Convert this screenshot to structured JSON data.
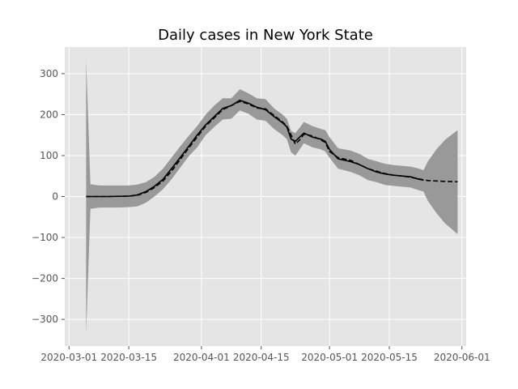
{
  "chart_data": {
    "type": "line",
    "title": "Daily cases in New York State",
    "xlabel": "",
    "ylabel": "",
    "x_is_date": true,
    "xlim": [
      "2020-02-29",
      "2020-06-02"
    ],
    "ylim": [
      -365,
      365
    ],
    "grid": true,
    "legend": "none",
    "x_ticks": [
      {
        "value": "2020-03-01",
        "label": "2020-03-01"
      },
      {
        "value": "2020-03-15",
        "label": "2020-03-15"
      },
      {
        "value": "2020-04-01",
        "label": "2020-04-01"
      },
      {
        "value": "2020-04-15",
        "label": "2020-04-15"
      },
      {
        "value": "2020-05-01",
        "label": "2020-05-01"
      },
      {
        "value": "2020-05-15",
        "label": "2020-05-15"
      },
      {
        "value": "2020-06-01",
        "label": "2020-06-01"
      }
    ],
    "y_ticks": [
      {
        "value": 300,
        "label": "300"
      },
      {
        "value": 200,
        "label": "200"
      },
      {
        "value": 100,
        "label": "100"
      },
      {
        "value": 0,
        "label": "0"
      },
      {
        "value": -100,
        "label": "−100"
      },
      {
        "value": -200,
        "label": "−200"
      },
      {
        "value": -300,
        "label": "−300"
      }
    ],
    "colors": {
      "axes_bg": "#E5E5E5",
      "grid": "#FFFFFF",
      "band": "#999999",
      "line": "#000000",
      "ticks": "#555555"
    },
    "band": [
      {
        "x": "2020-03-05",
        "lower": -335,
        "upper": 335
      },
      {
        "x": "2020-03-06",
        "lower": -30,
        "upper": 30
      },
      {
        "x": "2020-03-08",
        "lower": -27,
        "upper": 27
      },
      {
        "x": "2020-03-12",
        "lower": -27,
        "upper": 27
      },
      {
        "x": "2020-03-15",
        "lower": -26,
        "upper": 27
      },
      {
        "x": "2020-03-17",
        "lower": -24,
        "upper": 29
      },
      {
        "x": "2020-03-19",
        "lower": -15,
        "upper": 35
      },
      {
        "x": "2020-03-21",
        "lower": 0,
        "upper": 48
      },
      {
        "x": "2020-03-23",
        "lower": 18,
        "upper": 68
      },
      {
        "x": "2020-03-25",
        "lower": 42,
        "upper": 95
      },
      {
        "x": "2020-03-27",
        "lower": 70,
        "upper": 122
      },
      {
        "x": "2020-03-29",
        "lower": 98,
        "upper": 148
      },
      {
        "x": "2020-03-31",
        "lower": 120,
        "upper": 172
      },
      {
        "x": "2020-04-02",
        "lower": 150,
        "upper": 200
      },
      {
        "x": "2020-04-04",
        "lower": 170,
        "upper": 222
      },
      {
        "x": "2020-04-06",
        "lower": 188,
        "upper": 240
      },
      {
        "x": "2020-04-08",
        "lower": 190,
        "upper": 240
      },
      {
        "x": "2020-04-10",
        "lower": 210,
        "upper": 262
      },
      {
        "x": "2020-04-12",
        "lower": 202,
        "upper": 252
      },
      {
        "x": "2020-04-14",
        "lower": 188,
        "upper": 240
      },
      {
        "x": "2020-04-16",
        "lower": 185,
        "upper": 238
      },
      {
        "x": "2020-04-18",
        "lower": 165,
        "upper": 215
      },
      {
        "x": "2020-04-20",
        "lower": 150,
        "upper": 200
      },
      {
        "x": "2020-04-21",
        "lower": 140,
        "upper": 190
      },
      {
        "x": "2020-04-22",
        "lower": 108,
        "upper": 160
      },
      {
        "x": "2020-04-23",
        "lower": 100,
        "upper": 155
      },
      {
        "x": "2020-04-24",
        "lower": 115,
        "upper": 168
      },
      {
        "x": "2020-04-25",
        "lower": 130,
        "upper": 182
      },
      {
        "x": "2020-04-27",
        "lower": 120,
        "upper": 172
      },
      {
        "x": "2020-04-29",
        "lower": 115,
        "upper": 165
      },
      {
        "x": "2020-04-30",
        "lower": 110,
        "upper": 162
      },
      {
        "x": "2020-05-01",
        "lower": 95,
        "upper": 145
      },
      {
        "x": "2020-05-03",
        "lower": 68,
        "upper": 118
      },
      {
        "x": "2020-05-06",
        "lower": 60,
        "upper": 112
      },
      {
        "x": "2020-05-08",
        "lower": 52,
        "upper": 104
      },
      {
        "x": "2020-05-10",
        "lower": 40,
        "upper": 92
      },
      {
        "x": "2020-05-12",
        "lower": 35,
        "upper": 86
      },
      {
        "x": "2020-05-14",
        "lower": 28,
        "upper": 80
      },
      {
        "x": "2020-05-16",
        "lower": 26,
        "upper": 77
      },
      {
        "x": "2020-05-18",
        "lower": 24,
        "upper": 75
      },
      {
        "x": "2020-05-20",
        "lower": 22,
        "upper": 73
      },
      {
        "x": "2020-05-22",
        "lower": 15,
        "upper": 68
      },
      {
        "x": "2020-05-23",
        "lower": 12,
        "upper": 64
      },
      {
        "x": "2020-05-24",
        "lower": -10,
        "upper": 85
      },
      {
        "x": "2020-05-26",
        "lower": -40,
        "upper": 115
      },
      {
        "x": "2020-05-28",
        "lower": -65,
        "upper": 138
      },
      {
        "x": "2020-05-31",
        "lower": -92,
        "upper": 162
      }
    ],
    "series": [
      {
        "style": "solid",
        "points": [
          [
            "2020-03-05",
            0
          ],
          [
            "2020-03-10",
            0
          ],
          [
            "2020-03-15",
            1
          ],
          [
            "2020-03-17",
            4
          ],
          [
            "2020-03-19",
            12
          ],
          [
            "2020-03-21",
            25
          ],
          [
            "2020-03-23",
            42
          ],
          [
            "2020-03-25",
            68
          ],
          [
            "2020-03-27",
            95
          ],
          [
            "2020-03-29",
            122
          ],
          [
            "2020-03-31",
            150
          ],
          [
            "2020-04-02",
            175
          ],
          [
            "2020-04-04",
            195
          ],
          [
            "2020-04-06",
            215
          ],
          [
            "2020-04-08",
            222
          ],
          [
            "2020-04-10",
            235
          ],
          [
            "2020-04-12",
            228
          ],
          [
            "2020-04-14",
            218
          ],
          [
            "2020-04-16",
            212
          ],
          [
            "2020-04-18",
            195
          ],
          [
            "2020-04-20",
            180
          ],
          [
            "2020-04-21",
            170
          ],
          [
            "2020-04-22",
            140
          ],
          [
            "2020-04-23",
            135
          ],
          [
            "2020-04-24",
            145
          ],
          [
            "2020-04-25",
            155
          ],
          [
            "2020-04-27",
            145
          ],
          [
            "2020-04-29",
            140
          ],
          [
            "2020-04-30",
            135
          ],
          [
            "2020-05-01",
            115
          ],
          [
            "2020-05-03",
            92
          ],
          [
            "2020-05-06",
            85
          ],
          [
            "2020-05-08",
            78
          ],
          [
            "2020-05-10",
            68
          ],
          [
            "2020-05-12",
            60
          ],
          [
            "2020-05-14",
            55
          ],
          [
            "2020-05-16",
            52
          ],
          [
            "2020-05-18",
            50
          ],
          [
            "2020-05-20",
            48
          ],
          [
            "2020-05-22",
            42
          ],
          [
            "2020-05-23",
            40
          ]
        ]
      },
      {
        "style": "dashed",
        "points": [
          [
            "2020-03-05",
            0
          ],
          [
            "2020-03-10",
            0
          ],
          [
            "2020-03-15",
            1
          ],
          [
            "2020-03-17",
            3
          ],
          [
            "2020-03-19",
            10
          ],
          [
            "2020-03-21",
            22
          ],
          [
            "2020-03-23",
            38
          ],
          [
            "2020-03-25",
            62
          ],
          [
            "2020-03-27",
            90
          ],
          [
            "2020-03-29",
            118
          ],
          [
            "2020-03-31",
            145
          ],
          [
            "2020-04-02",
            172
          ],
          [
            "2020-04-04",
            192
          ],
          [
            "2020-04-06",
            212
          ],
          [
            "2020-04-08",
            222
          ],
          [
            "2020-04-10",
            232
          ],
          [
            "2020-04-12",
            226
          ],
          [
            "2020-04-14",
            216
          ],
          [
            "2020-04-16",
            214
          ],
          [
            "2020-04-18",
            198
          ],
          [
            "2020-04-20",
            182
          ],
          [
            "2020-04-21",
            172
          ],
          [
            "2020-04-22",
            150
          ],
          [
            "2020-04-23",
            128
          ],
          [
            "2020-04-24",
            138
          ],
          [
            "2020-04-25",
            152
          ],
          [
            "2020-04-27",
            148
          ],
          [
            "2020-04-29",
            138
          ],
          [
            "2020-04-30",
            132
          ],
          [
            "2020-05-01",
            110
          ],
          [
            "2020-05-03",
            95
          ],
          [
            "2020-05-06",
            88
          ],
          [
            "2020-05-08",
            78
          ],
          [
            "2020-05-10",
            68
          ],
          [
            "2020-05-12",
            62
          ],
          [
            "2020-05-14",
            56
          ],
          [
            "2020-05-16",
            52
          ],
          [
            "2020-05-18",
            50
          ],
          [
            "2020-05-20",
            47
          ],
          [
            "2020-05-22",
            43
          ],
          [
            "2020-05-24",
            39
          ],
          [
            "2020-05-26",
            38
          ],
          [
            "2020-05-28",
            37
          ],
          [
            "2020-05-31",
            36
          ]
        ]
      }
    ]
  }
}
